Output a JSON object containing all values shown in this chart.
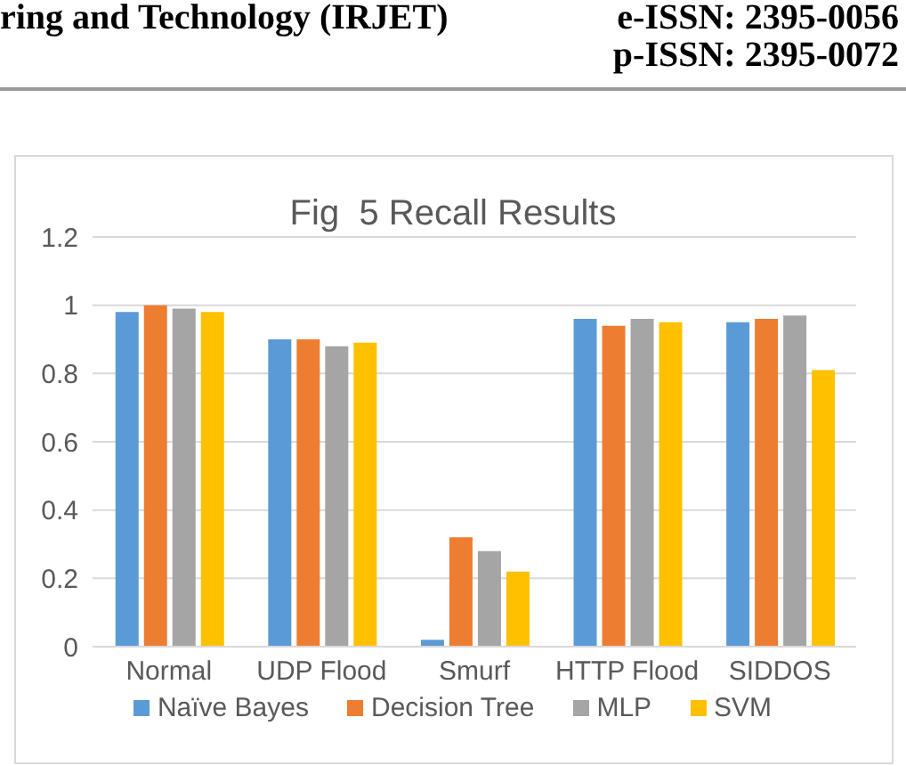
{
  "chart_data": {
    "type": "bar",
    "title": "Fig  5 Recall Results",
    "annotations": [
      "ring and Technology (IRJET)",
      "e-ISSN: 2395-0056",
      "p-ISSN: 2395-0072"
    ],
    "categories": [
      "Normal",
      "UDP Flood",
      "Smurf",
      "HTTP Flood",
      "SIDDOS"
    ],
    "series": [
      {
        "name": "Naïve Bayes",
        "color": "#5b9bd5",
        "values": [
          0.98,
          0.9,
          0.02,
          0.96,
          0.95
        ]
      },
      {
        "name": "Decision Tree",
        "color": "#ed7d31",
        "values": [
          1.0,
          0.9,
          0.32,
          0.94,
          0.96
        ]
      },
      {
        "name": "MLP",
        "color": "#a5a5a5",
        "values": [
          0.99,
          0.88,
          0.28,
          0.96,
          0.97
        ]
      },
      {
        "name": "SVM",
        "color": "#ffc000",
        "values": [
          0.98,
          0.89,
          0.22,
          0.95,
          0.81
        ]
      }
    ],
    "ylim": [
      0,
      1.2
    ],
    "yticks": [
      0,
      0.2,
      0.4,
      0.6,
      0.8,
      1,
      1.2
    ],
    "grid": "y",
    "legend": "bottom"
  }
}
